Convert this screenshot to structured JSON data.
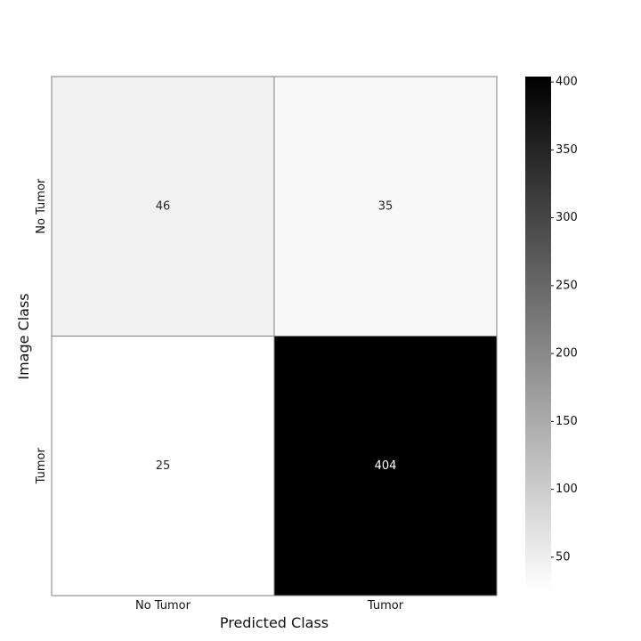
{
  "chart_data": {
    "type": "heatmap",
    "xlabel": "Predicted Class",
    "ylabel": "Image Class",
    "x_categories": [
      "No Tumor",
      "Tumor"
    ],
    "y_categories": [
      "No Tumor",
      "Tumor"
    ],
    "values": [
      [
        46,
        35
      ],
      [
        25,
        404
      ]
    ],
    "colormap": "Greys",
    "colorbar": {
      "vmin": 25,
      "vmax": 404,
      "ticks": [
        50,
        100,
        150,
        200,
        250,
        300,
        350,
        400
      ]
    },
    "colors": {
      "low": "#ffffff",
      "high": "#000000",
      "cell_border": "#808080"
    }
  }
}
